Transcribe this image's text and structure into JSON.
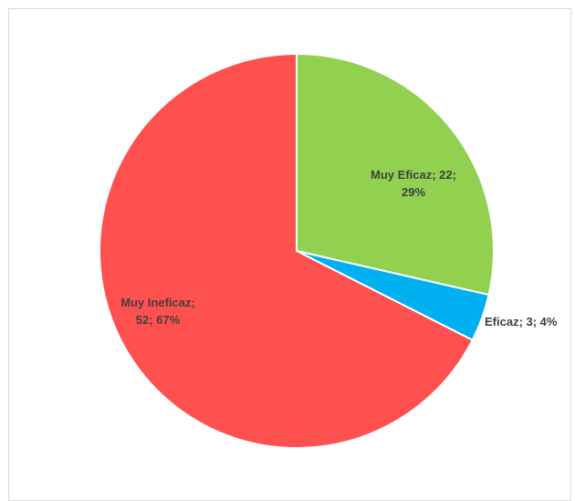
{
  "chart_data": {
    "type": "pie",
    "title": "",
    "slices": [
      {
        "label": "Muy Eficaz",
        "value": 22,
        "percent": 29,
        "color": "#92D050",
        "label_lines": [
          "Muy Eficaz; 22;",
          "29%"
        ]
      },
      {
        "label": "Eficaz",
        "value": 3,
        "percent": 4,
        "color": "#00B0F0",
        "label_lines": [
          "Eficaz; 3; 4%"
        ]
      },
      {
        "label": "Muy Ineficaz",
        "value": 52,
        "percent": 67,
        "color": "#FF5050",
        "label_lines": [
          "Muy Ineficaz;",
          "52; 67%"
        ]
      }
    ],
    "start_angle_deg": 0,
    "direction": "clockwise",
    "legend": "none"
  }
}
